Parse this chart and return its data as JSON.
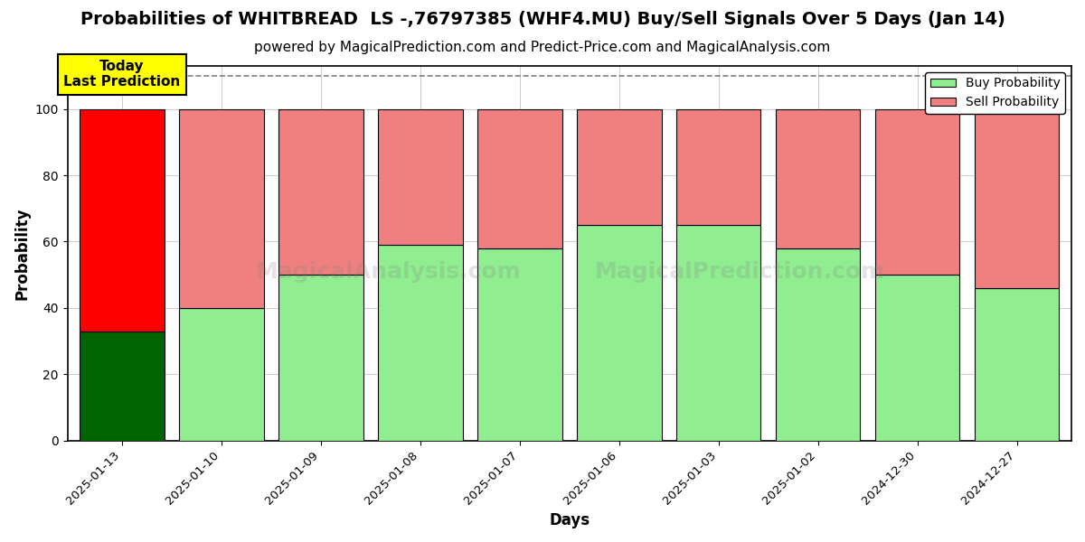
{
  "title": "Probabilities of WHITBREAD  LS -,76797385 (WHF4.MU) Buy/Sell Signals Over 5 Days (Jan 14)",
  "subtitle": "powered by MagicalPrediction.com and Predict-Price.com and MagicalAnalysis.com",
  "xlabel": "Days",
  "ylabel": "Probability",
  "categories": [
    "2025-01-13",
    "2025-01-10",
    "2025-01-09",
    "2025-01-08",
    "2025-01-07",
    "2025-01-06",
    "2025-01-03",
    "2025-01-02",
    "2024-12-30",
    "2024-12-27"
  ],
  "buy_values": [
    33,
    40,
    50,
    59,
    58,
    65,
    65,
    58,
    50,
    46
  ],
  "sell_values": [
    67,
    60,
    50,
    41,
    42,
    35,
    35,
    42,
    50,
    54
  ],
  "buy_colors": [
    "#006400",
    "#90EE90",
    "#90EE90",
    "#90EE90",
    "#90EE90",
    "#90EE90",
    "#90EE90",
    "#90EE90",
    "#90EE90",
    "#90EE90"
  ],
  "sell_colors": [
    "#FF0000",
    "#F08080",
    "#F08080",
    "#F08080",
    "#F08080",
    "#F08080",
    "#F08080",
    "#F08080",
    "#F08080",
    "#F08080"
  ],
  "today_label": "Today\nLast Prediction",
  "today_bg": "#FFFF00",
  "ylim": [
    0,
    113
  ],
  "yticks": [
    0,
    20,
    40,
    60,
    80,
    100
  ],
  "dashed_line_y": 110,
  "legend_buy": "Buy Probability",
  "legend_sell": "Sell Probability",
  "title_fontsize": 14,
  "subtitle_fontsize": 11,
  "bar_width": 0.85,
  "background_color": "#ffffff",
  "grid_color": "#cccccc",
  "watermark1": "MagicalAnalysis.com",
  "watermark2": "MagicalPrediction.com"
}
